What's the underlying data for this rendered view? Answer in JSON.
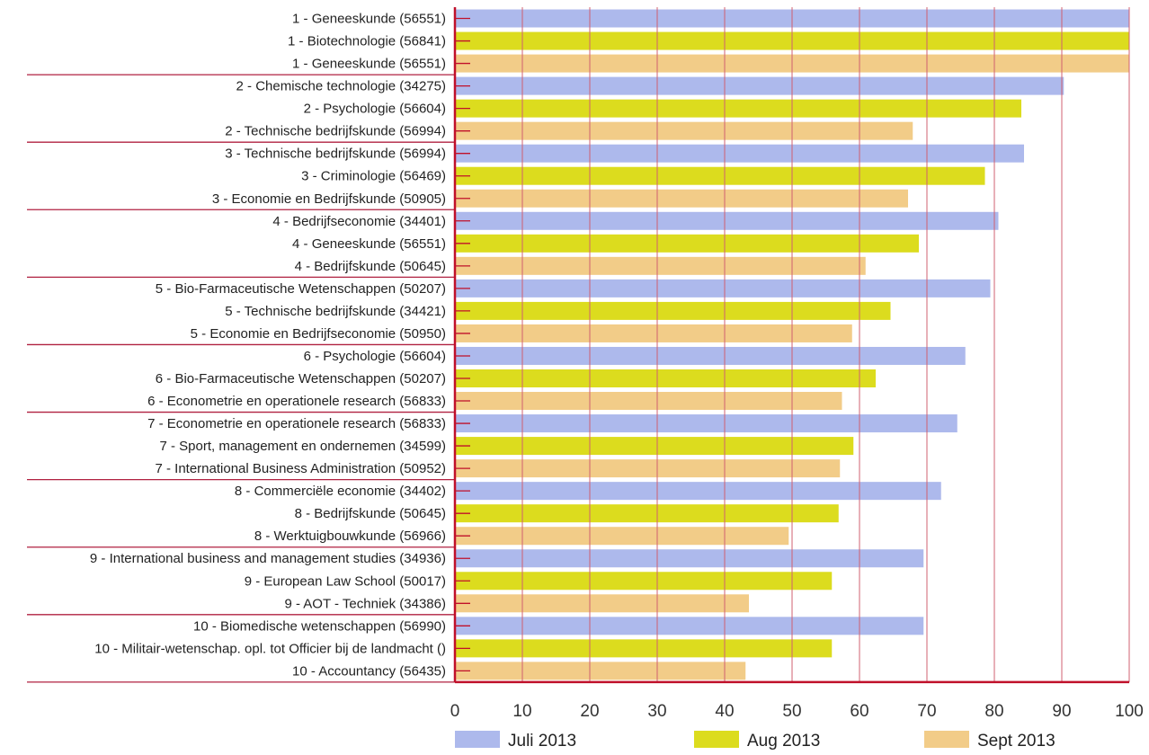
{
  "chart_data": {
    "type": "bar",
    "orientation": "horizontal",
    "title": "",
    "xlabel": "",
    "ylabel": "",
    "xlim": [
      0,
      100
    ],
    "xticks": [
      0,
      10,
      20,
      30,
      40,
      50,
      60,
      70,
      80,
      90,
      100
    ],
    "grid": true,
    "legend_position": "bottom",
    "colors": {
      "Juli 2013": "#adb9ec",
      "Aug 2013": "#dcdc1e",
      "Sept 2013": "#f2cc88",
      "axis": "#c0102a",
      "grid": "#d06070",
      "separator": "#b02040"
    },
    "legend": [
      "Juli 2013",
      "Aug 2013",
      "Sept 2013"
    ],
    "bars": [
      {
        "label": "1 - Geneeskunde (56551)",
        "series": "Juli 2013",
        "value": 100
      },
      {
        "label": "1 - Biotechnologie (56841)",
        "series": "Aug 2013",
        "value": 100
      },
      {
        "label": "1 - Geneeskunde (56551)",
        "series": "Sept 2013",
        "value": 100
      },
      {
        "label": "2 - Chemische technologie (34275)",
        "series": "Juli 2013",
        "value": 90.3
      },
      {
        "label": "2 - Psychologie (56604)",
        "series": "Aug 2013",
        "value": 84
      },
      {
        "label": "2 - Technische bedrijfskunde (56994)",
        "series": "Sept 2013",
        "value": 67.9
      },
      {
        "label": "3 - Technische bedrijfskunde (56994)",
        "series": "Juli 2013",
        "value": 84.4
      },
      {
        "label": "3 - Criminologie (56469)",
        "series": "Aug 2013",
        "value": 78.6
      },
      {
        "label": "3 - Economie en Bedrijfskunde (50905)",
        "series": "Sept 2013",
        "value": 67.2
      },
      {
        "label": "4 - Bedrijfseconomie (34401)",
        "series": "Juli 2013",
        "value": 80.6
      },
      {
        "label": "4 - Geneeskunde (56551)",
        "series": "Aug 2013",
        "value": 68.8
      },
      {
        "label": "4 - Bedrijfskunde (50645)",
        "series": "Sept 2013",
        "value": 60.9
      },
      {
        "label": "5 - Bio-Farmaceutische Wetenschappen (50207)",
        "series": "Juli 2013",
        "value": 79.4
      },
      {
        "label": "5 - Technische bedrijfskunde (34421)",
        "series": "Aug 2013",
        "value": 64.6
      },
      {
        "label": "5 - Economie en Bedrijfseconomie (50950)",
        "series": "Sept 2013",
        "value": 58.9
      },
      {
        "label": "6 - Psychologie (56604)",
        "series": "Juli 2013",
        "value": 75.7
      },
      {
        "label": "6 - Bio-Farmaceutische Wetenschappen (50207)",
        "series": "Aug 2013",
        "value": 62.4
      },
      {
        "label": "6 - Econometrie en operationele research (56833)",
        "series": "Sept 2013",
        "value": 57.4
      },
      {
        "label": "7 - Econometrie en operationele research (56833)",
        "series": "Juli 2013",
        "value": 74.5
      },
      {
        "label": "7 - Sport, management en ondernemen (34599)",
        "series": "Aug 2013",
        "value": 59.1
      },
      {
        "label": "7 - International Business Administration (50952)",
        "series": "Sept 2013",
        "value": 57.1
      },
      {
        "label": "8 - Commerciële economie (34402)",
        "series": "Juli 2013",
        "value": 72.1
      },
      {
        "label": "8 - Bedrijfskunde (50645)",
        "series": "Aug 2013",
        "value": 56.9
      },
      {
        "label": "8 - Werktuigbouwkunde (56966)",
        "series": "Sept 2013",
        "value": 49.5
      },
      {
        "label": "9 - International business and management studies (34936)",
        "series": "Juli 2013",
        "value": 69.5
      },
      {
        "label": "9 - European Law School (50017)",
        "series": "Aug 2013",
        "value": 55.9
      },
      {
        "label": "9 - AOT - Techniek (34386)",
        "series": "Sept 2013",
        "value": 43.6
      },
      {
        "label": "10 - Biomedische wetenschappen (56990)",
        "series": "Juli 2013",
        "value": 69.5
      },
      {
        "label": "10 - Militair-wetenschap. opl. tot Officier bij de landmacht ()",
        "series": "Aug 2013",
        "value": 55.9
      },
      {
        "label": "10 - Accountancy (56435)",
        "series": "Sept 2013",
        "value": 43.1
      }
    ]
  }
}
